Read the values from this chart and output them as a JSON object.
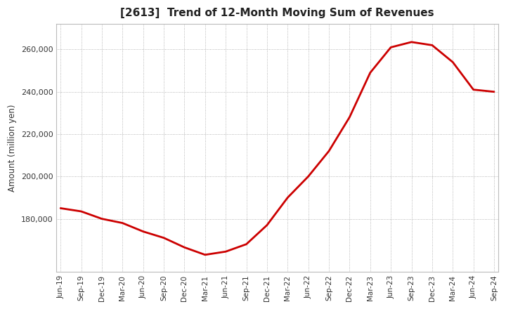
{
  "title": "[2613]  Trend of 12-Month Moving Sum of Revenues",
  "ylabel": "Amount (million yen)",
  "line_color": "#cc0000",
  "line_width": 2.0,
  "background_color": "#ffffff",
  "plot_bg_color": "#ffffff",
  "grid_color": "#999999",
  "ylim": [
    155000,
    272000
  ],
  "yticks": [
    180000,
    200000,
    220000,
    240000,
    260000
  ],
  "x_labels": [
    "Jun-19",
    "Sep-19",
    "Dec-19",
    "Mar-20",
    "Jun-20",
    "Sep-20",
    "Dec-20",
    "Mar-21",
    "Jun-21",
    "Sep-21",
    "Dec-21",
    "Mar-22",
    "Jun-22",
    "Sep-22",
    "Dec-22",
    "Mar-23",
    "Jun-23",
    "Sep-23",
    "Dec-23",
    "Mar-24",
    "Jun-24",
    "Sep-24"
  ],
  "x_values": [
    0,
    1,
    2,
    3,
    4,
    5,
    6,
    7,
    8,
    9,
    10,
    11,
    12,
    13,
    14,
    15,
    16,
    17,
    18,
    19,
    20,
    21
  ],
  "y_values": [
    185000,
    183500,
    180000,
    178000,
    174000,
    171000,
    166500,
    163000,
    164500,
    168000,
    177000,
    190000,
    200000,
    212000,
    228000,
    249000,
    261000,
    263500,
    262000,
    254000,
    241000,
    240000
  ]
}
